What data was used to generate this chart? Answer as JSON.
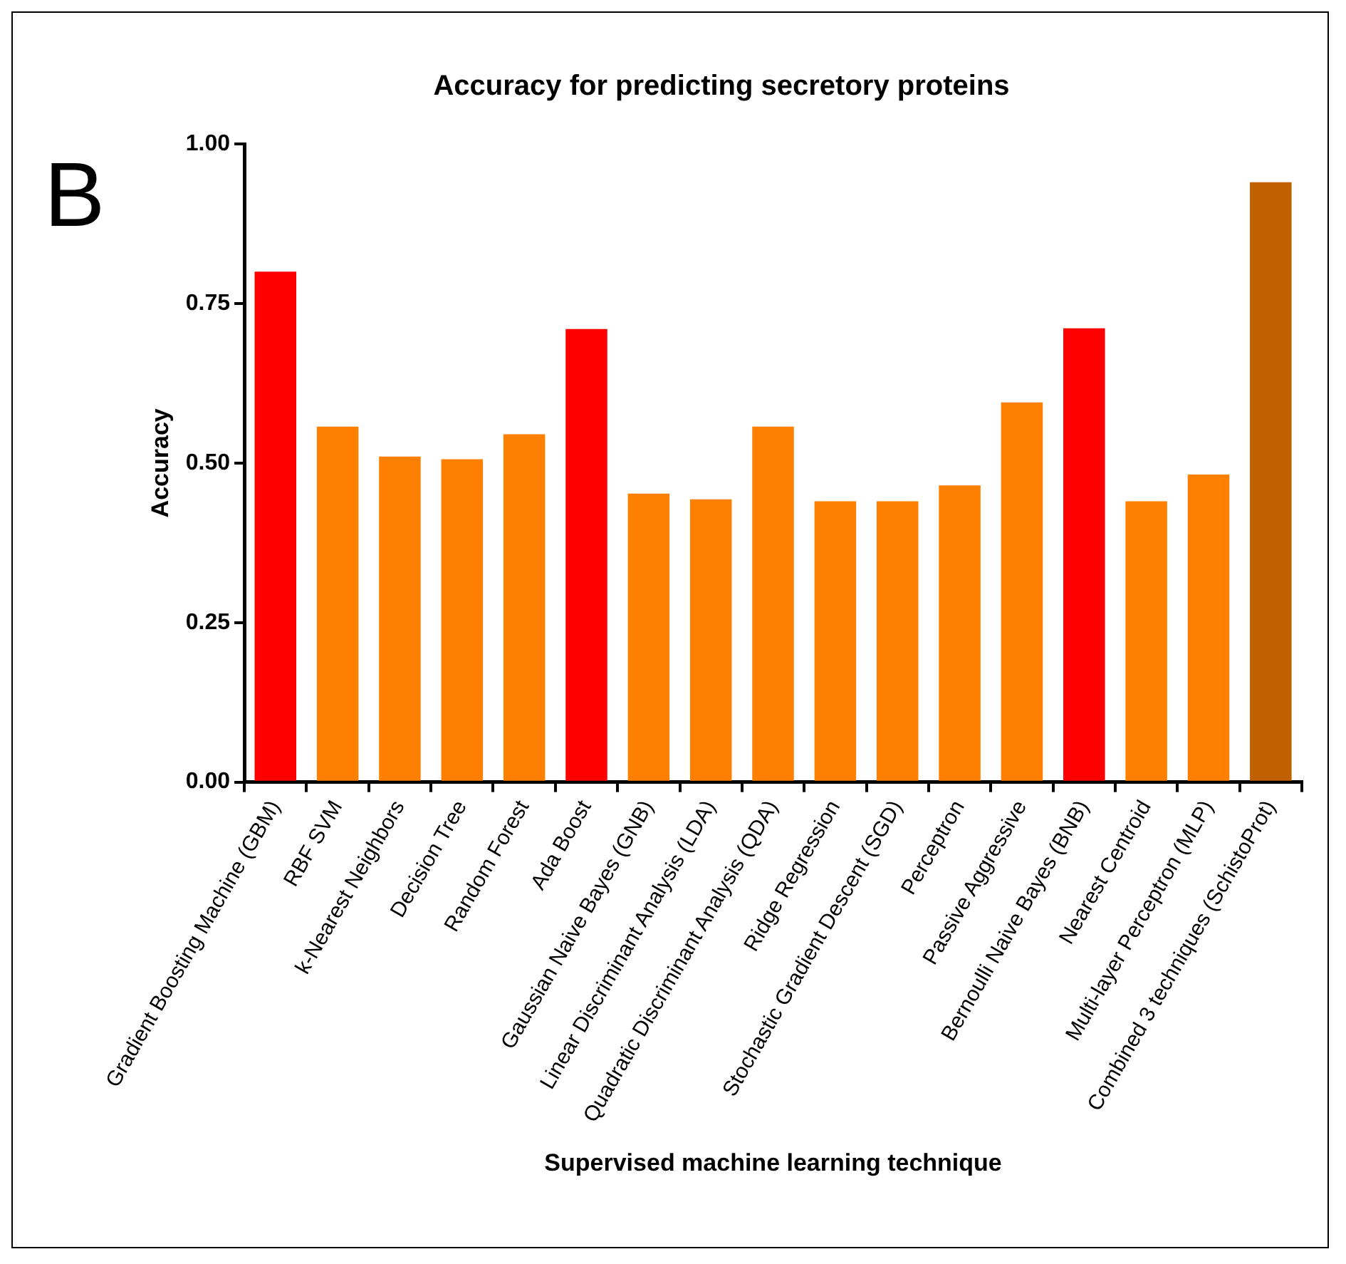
{
  "chart_data": {
    "type": "bar",
    "title": "Accuracy for predicting secretory proteins",
    "xlabel": "Supervised machine learning technique",
    "ylabel": "Accuracy",
    "annotations": [
      "B"
    ],
    "categories": [
      "Gradient Boosting Machine (GBM)",
      "RBF SVM",
      "k-Nearest Neighbors",
      "Decision Tree",
      "Random Forest",
      "Ada Boost",
      "Gaussian Naive Bayes (GNB)",
      "Linear Discriminant Analysis (LDA)",
      "Quadratic Discriminant Analysis (QDA)",
      "Ridge Regression",
      "Stochastic Gradient Descent (SGD)",
      "Perceptron",
      "Passive Aggressive",
      "Bernoulli Naive Bayes (BNB)",
      "Nearest Centroid",
      "Multi-layer Perceptron (MLP)",
      "Combined 3 techniques (SchistoProt)"
    ],
    "values": [
      0.8,
      0.557,
      0.51,
      0.506,
      0.545,
      0.71,
      0.452,
      0.443,
      0.557,
      0.44,
      0.44,
      0.465,
      0.595,
      0.711,
      0.44,
      0.482,
      0.94
    ],
    "colors": [
      "#ff0000",
      "#ff8000",
      "#ff8000",
      "#ff8000",
      "#ff8000",
      "#ff0000",
      "#ff8000",
      "#ff8000",
      "#ff8000",
      "#ff8000",
      "#ff8000",
      "#ff8000",
      "#ff8000",
      "#ff0000",
      "#ff8000",
      "#ff8000",
      "#c06000"
    ],
    "ylim": [
      0,
      1
    ],
    "yticks": [
      {
        "value": 0,
        "label": "0.00"
      },
      {
        "value": 0.25,
        "label": "0.25"
      },
      {
        "value": 0.5,
        "label": "0.50"
      },
      {
        "value": 0.75,
        "label": "0.75"
      },
      {
        "value": 1,
        "label": "1.00"
      }
    ],
    "grid": false,
    "legend": false
  }
}
